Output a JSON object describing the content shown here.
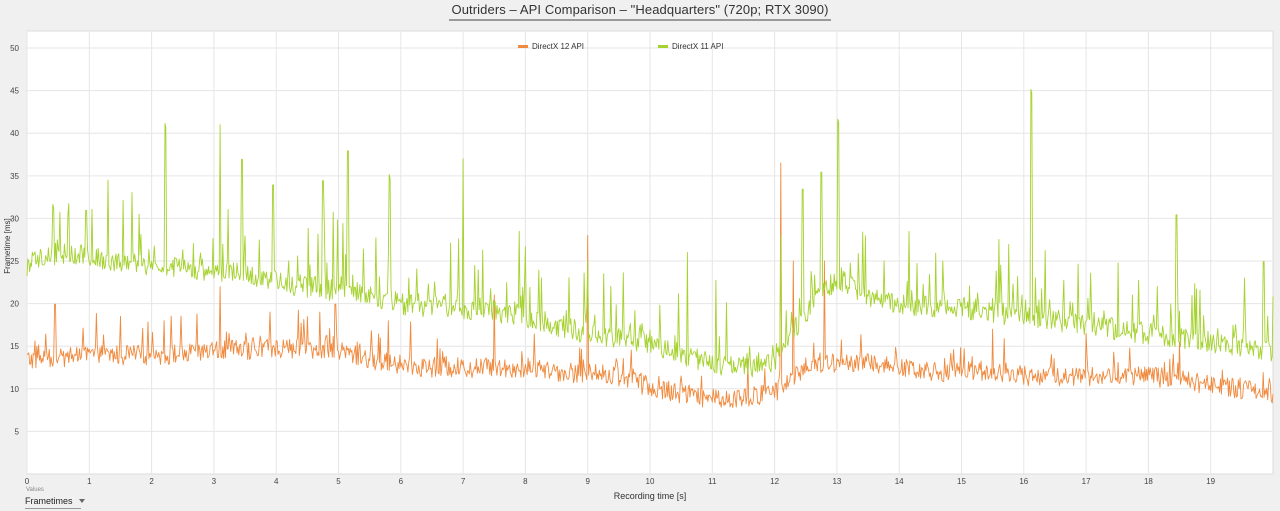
{
  "chart_data": {
    "type": "line",
    "title": "Outriders – API Comparison – \"Headquarters\" (720p; RTX 3090)",
    "xlabel": "Recording time [s]",
    "ylabel": "Frametime [ms]",
    "xlim": [
      0,
      20
    ],
    "ylim": [
      0,
      52
    ],
    "x_ticks": [
      0,
      1,
      2,
      3,
      4,
      5,
      6,
      7,
      8,
      9,
      10,
      11,
      12,
      13,
      14,
      15,
      16,
      17,
      18,
      19
    ],
    "y_ticks": [
      5,
      10,
      15,
      20,
      25,
      30,
      35,
      40,
      45,
      50
    ],
    "grid": true,
    "legend_position": "top-center",
    "series": [
      {
        "name": "DirectX 12 API",
        "color": "#f08a3e",
        "x": [
          0,
          0.5,
          1,
          1.5,
          2,
          2.5,
          3,
          3.5,
          4,
          4.5,
          5,
          5.5,
          6,
          6.5,
          7,
          7.5,
          8,
          8.5,
          9,
          9.5,
          10,
          10.5,
          11,
          11.5,
          12,
          12.5,
          13,
          13.5,
          14,
          14.5,
          15,
          15.5,
          16,
          16.5,
          17,
          17.5,
          18,
          18.5,
          19,
          19.5,
          20
        ],
        "values": [
          13.5,
          13.5,
          14,
          14,
          14,
          14,
          14.5,
          14.5,
          14.8,
          14.8,
          14.5,
          13.5,
          12.8,
          12.5,
          12.5,
          12.5,
          12.5,
          12,
          11.8,
          11.5,
          10.2,
          9.5,
          8.8,
          9,
          9.5,
          12.5,
          13,
          13,
          12.5,
          12,
          12,
          12,
          11.5,
          11.5,
          11.5,
          11.5,
          11.5,
          11,
          10.5,
          10,
          9.5
        ],
        "spikes": [
          {
            "x": 0.45,
            "y": 21
          },
          {
            "x": 1.5,
            "y": 18.5
          },
          {
            "x": 2.2,
            "y": 18
          },
          {
            "x": 3.1,
            "y": 22
          },
          {
            "x": 3.9,
            "y": 19
          },
          {
            "x": 4.7,
            "y": 19
          },
          {
            "x": 4.95,
            "y": 21
          },
          {
            "x": 5.8,
            "y": 18
          },
          {
            "x": 7.5,
            "y": 21
          },
          {
            "x": 9,
            "y": 28
          },
          {
            "x": 12.1,
            "y": 36.5
          },
          {
            "x": 12.3,
            "y": 25
          },
          {
            "x": 12.8,
            "y": 25
          },
          {
            "x": 15.5,
            "y": 17
          },
          {
            "x": 17,
            "y": 16.5
          },
          {
            "x": 18.5,
            "y": 15.5
          }
        ]
      },
      {
        "name": "DirectX 11 API",
        "color": "#a5d22f",
        "x": [
          0,
          0.5,
          1,
          1.5,
          2,
          2.5,
          3,
          3.5,
          4,
          4.5,
          5,
          5.5,
          6,
          6.5,
          7,
          7.5,
          8,
          8.5,
          9,
          9.5,
          10,
          10.5,
          11,
          11.5,
          12,
          12.5,
          13,
          13.5,
          14,
          14.5,
          15,
          15.5,
          16,
          16.5,
          17,
          17.5,
          18,
          18.5,
          19,
          19.5,
          20
        ],
        "values": [
          24.5,
          26,
          25.5,
          25,
          24.5,
          24,
          24,
          23.5,
          22.5,
          22,
          21.5,
          21,
          20,
          19.5,
          19.5,
          19,
          18.5,
          17.5,
          16.5,
          16,
          15.5,
          14,
          13,
          12.5,
          13,
          19,
          23,
          21,
          20,
          19.5,
          19.5,
          19,
          18.5,
          18,
          17.5,
          17,
          16.5,
          16,
          15.5,
          15,
          14.5
        ],
        "spikes": [
          {
            "x": 0.42,
            "y": 32.5
          },
          {
            "x": 0.95,
            "y": 32
          },
          {
            "x": 1.3,
            "y": 34.5
          },
          {
            "x": 1.8,
            "y": 30.5
          },
          {
            "x": 2.22,
            "y": 42
          },
          {
            "x": 3.1,
            "y": 41
          },
          {
            "x": 3.45,
            "y": 38
          },
          {
            "x": 3.95,
            "y": 35
          },
          {
            "x": 4.75,
            "y": 35.5
          },
          {
            "x": 5.15,
            "y": 39
          },
          {
            "x": 5.82,
            "y": 36
          },
          {
            "x": 7.0,
            "y": 37
          },
          {
            "x": 7.9,
            "y": 28.5
          },
          {
            "x": 9.0,
            "y": 25
          },
          {
            "x": 10.6,
            "y": 26
          },
          {
            "x": 12.1,
            "y": 28
          },
          {
            "x": 12.45,
            "y": 34.5
          },
          {
            "x": 12.75,
            "y": 36.5
          },
          {
            "x": 13.02,
            "y": 42.5
          },
          {
            "x": 14.7,
            "y": 25
          },
          {
            "x": 16.12,
            "y": 46
          },
          {
            "x": 18.45,
            "y": 31.5
          },
          {
            "x": 19.85,
            "y": 26
          }
        ]
      }
    ]
  },
  "footer": {
    "values_caption": "Values",
    "series_select": "Frametimes"
  }
}
